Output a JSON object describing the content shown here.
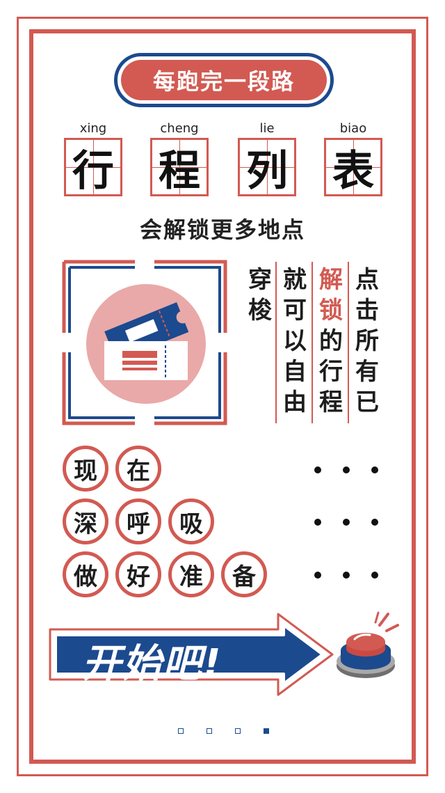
{
  "header": {
    "badge_text": "每跑完一段路"
  },
  "title": {
    "chars": [
      {
        "pinyin": "xing",
        "char": "行"
      },
      {
        "pinyin": "cheng",
        "char": "程"
      },
      {
        "pinyin": "lie",
        "char": "列"
      },
      {
        "pinyin": "biao",
        "char": "表"
      }
    ]
  },
  "subtitle": "会解锁更多地点",
  "icon": {
    "name": "ticket-icon"
  },
  "vertical_text": {
    "columns": [
      {
        "text": "穿梭",
        "highlight": false
      },
      {
        "text": "就可以自由",
        "highlight": false
      },
      {
        "text": "解锁的行程",
        "highlight": false,
        "highlight_chars": "解锁"
      },
      {
        "text": "点击所有已",
        "highlight": false
      }
    ]
  },
  "phrases": [
    {
      "chars": [
        "现",
        "在"
      ]
    },
    {
      "chars": [
        "深",
        "呼",
        "吸"
      ]
    },
    {
      "chars": [
        "做",
        "好",
        "准",
        "备"
      ]
    }
  ],
  "start_button": {
    "label": "开始吧!"
  },
  "pager": {
    "count": 4,
    "active_index": 3
  },
  "colors": {
    "red": "#d25a52",
    "blue": "#1c4a8e",
    "pink": "#e9a9a8"
  }
}
